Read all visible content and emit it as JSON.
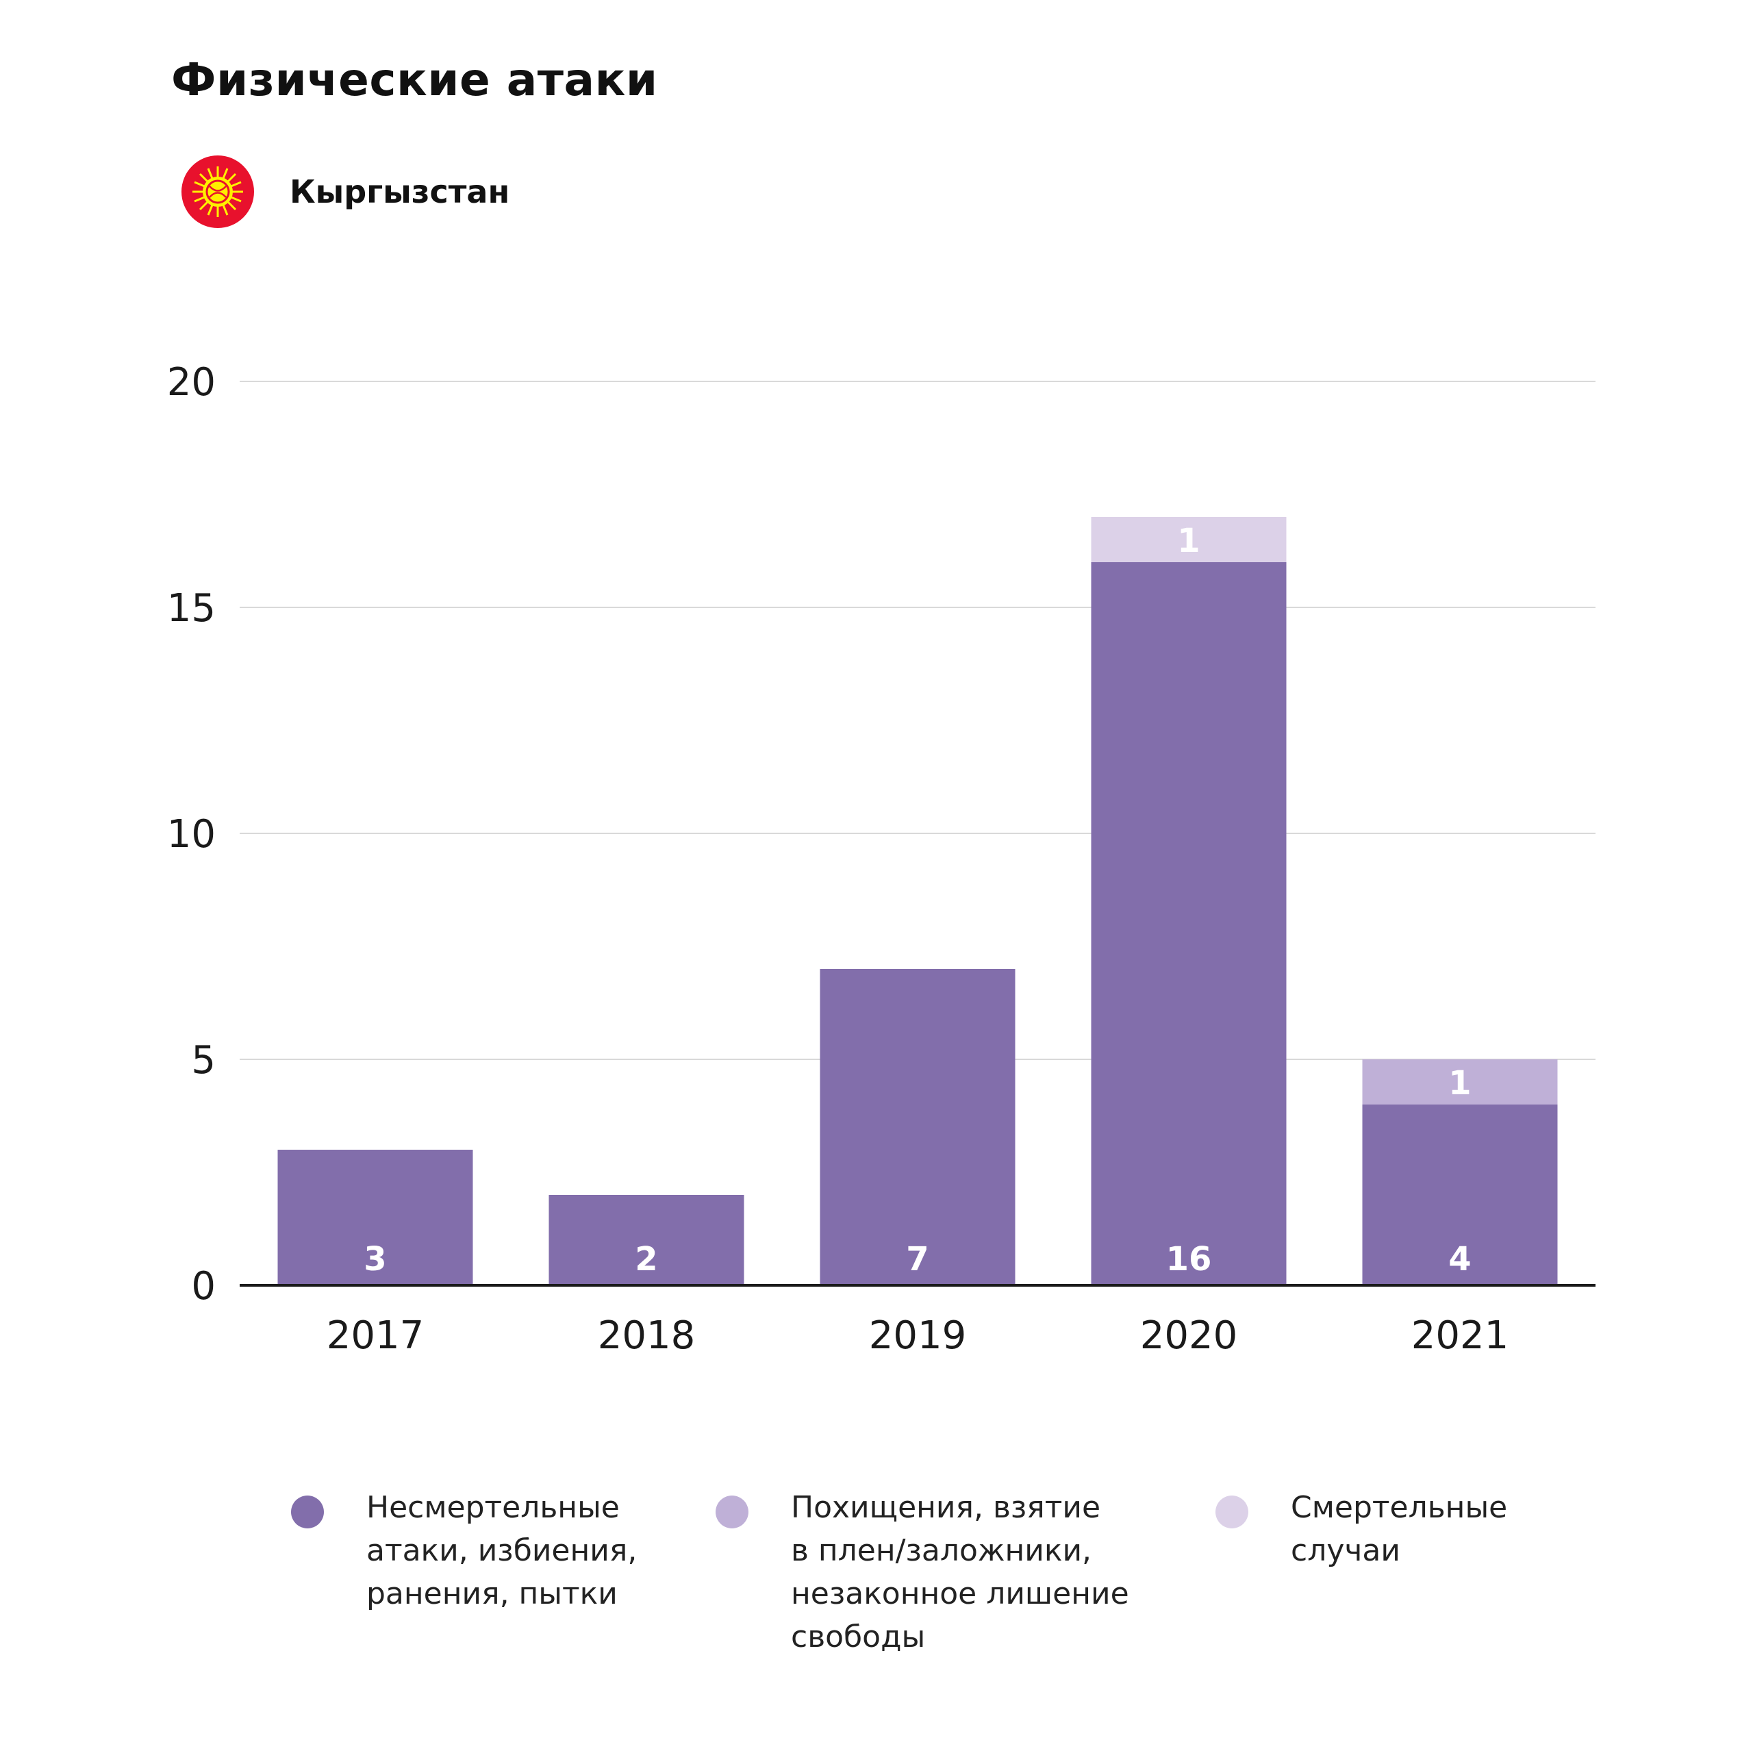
{
  "title": "Физические атаки",
  "country": {
    "name": "Кыргызстан",
    "flag_icon": "kyrgyzstan-flag-icon",
    "flag_colors": {
      "field": "#E8112D",
      "sun": "#FFEF00"
    }
  },
  "colors": {
    "non_lethal": "#826EAB",
    "kidnapping": "#BFB0D7",
    "fatal": "#DCD1E8",
    "grid": "#D9D9D9",
    "axis": "#1a1a1a",
    "bar_label": "#ffffff"
  },
  "chart_data": {
    "type": "bar",
    "stacked": true,
    "title": "",
    "xlabel": "",
    "ylabel": "",
    "categories": [
      "2017",
      "2018",
      "2019",
      "2020",
      "2021"
    ],
    "ylim": [
      0,
      20
    ],
    "yticks": [
      "0",
      "5",
      "10",
      "15",
      "20"
    ],
    "grid": true,
    "legend_position": "bottom",
    "series": [
      {
        "key": "non_lethal",
        "name": "Несмертельные\nатаки, избиения,\nранения, пытки",
        "values": [
          3,
          2,
          7,
          16,
          4
        ],
        "labels": [
          "3",
          "2",
          "7",
          "16",
          "4"
        ]
      },
      {
        "key": "kidnapping",
        "name": "Похищения, взятие\nв плен/заложники,\nнезаконное лишение\nсвободы",
        "values": [
          0,
          0,
          0,
          0,
          1
        ],
        "labels": [
          "",
          "",
          "",
          "",
          "1"
        ]
      },
      {
        "key": "fatal",
        "name": "Смертельные\nслучаи",
        "values": [
          0,
          0,
          0,
          1,
          0
        ],
        "labels": [
          "",
          "",
          "",
          "1",
          ""
        ]
      }
    ]
  },
  "legend": [
    {
      "key": "non_lethal",
      "label": "Несмертельные\nатаки, избиения,\nранения, пытки"
    },
    {
      "key": "kidnapping",
      "label": "Похищения, взятие\nв плен/заложники,\nнезаконное лишение\nсвободы"
    },
    {
      "key": "fatal",
      "label": "Смертельные\nслучаи"
    }
  ]
}
